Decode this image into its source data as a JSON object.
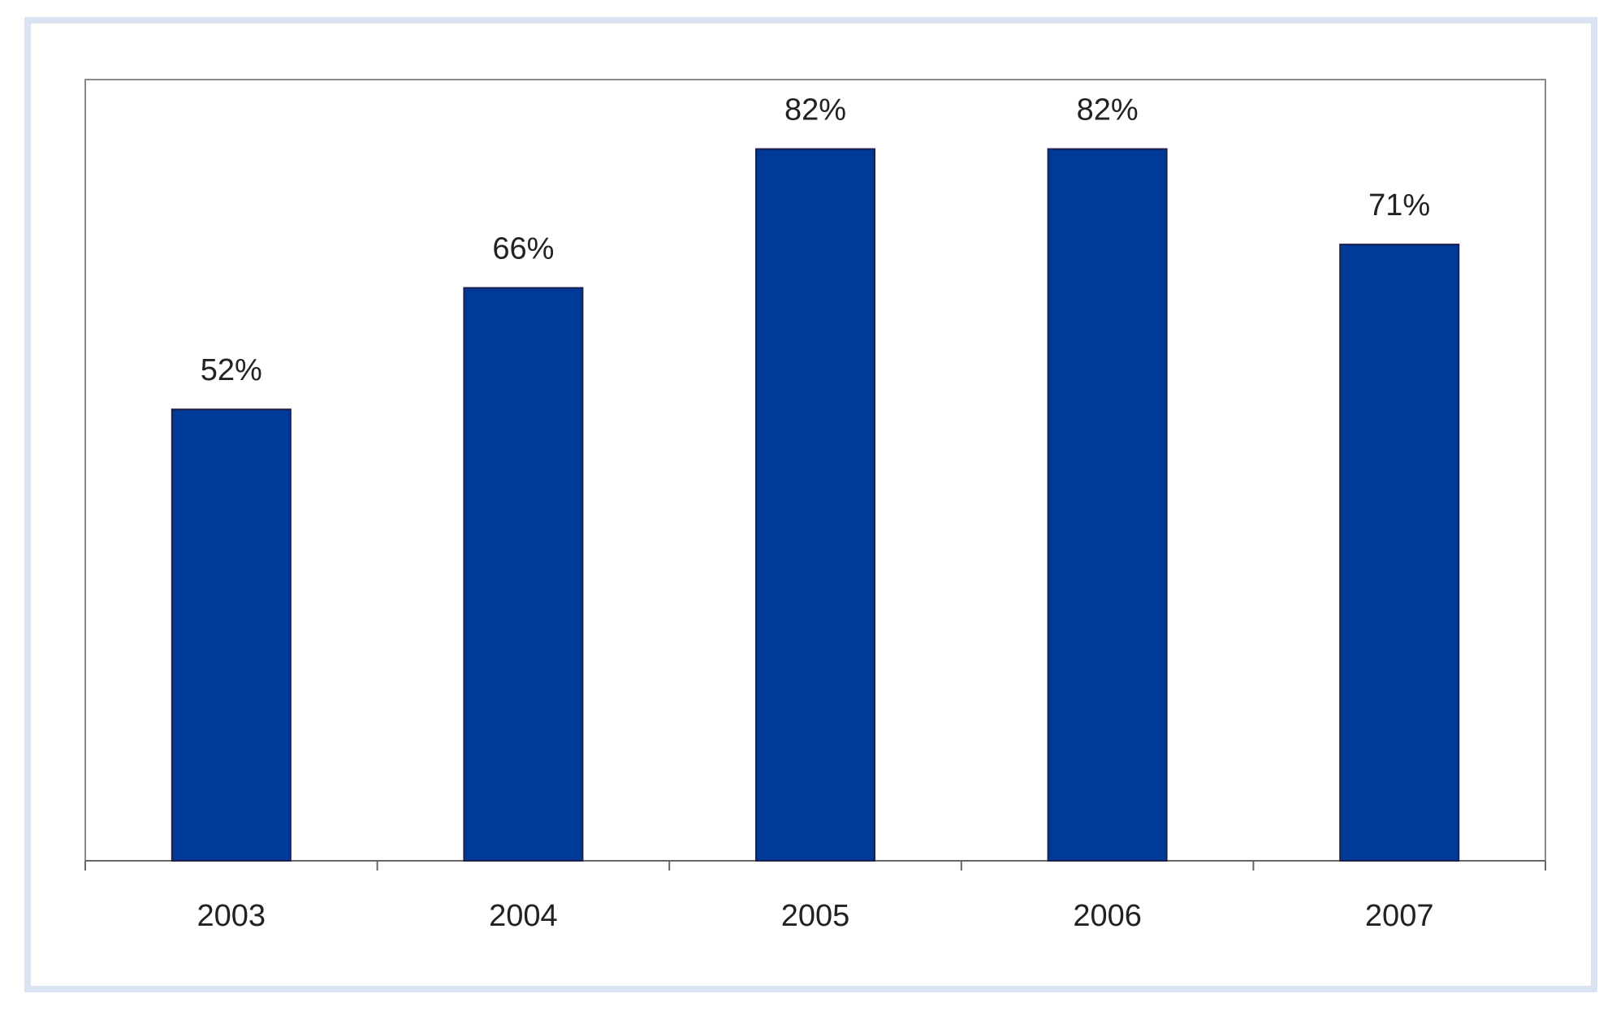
{
  "chart_data": {
    "type": "bar",
    "categories": [
      "2003",
      "2004",
      "2005",
      "2006",
      "2007"
    ],
    "values": [
      52,
      66,
      82,
      82,
      71
    ],
    "value_labels": [
      "52%",
      "66%",
      "82%",
      "82%",
      "71%"
    ],
    "color": "#003a99",
    "ylim": [
      0,
      90
    ]
  }
}
